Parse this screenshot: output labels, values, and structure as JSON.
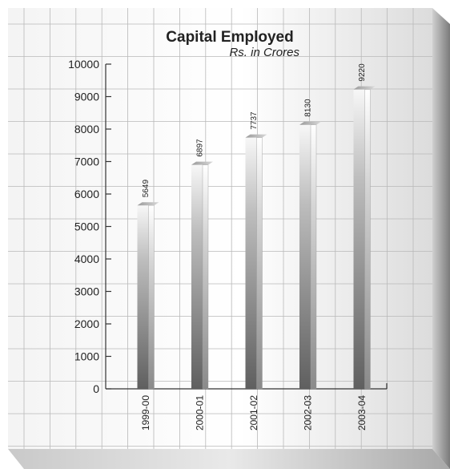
{
  "chart_data": {
    "type": "bar",
    "title": "Capital Employed",
    "subtitle": "Rs. in Crores",
    "xlabel": "",
    "ylabel": "",
    "categories": [
      "1999-00",
      "2000-01",
      "2001-02",
      "2002-03",
      "2003-04"
    ],
    "values": [
      5649,
      6897,
      7737,
      8130,
      9220
    ],
    "ylim": [
      0,
      10000
    ],
    "yticks": [
      0,
      1000,
      2000,
      3000,
      4000,
      5000,
      6000,
      7000,
      8000,
      9000,
      10000
    ],
    "grid": true,
    "legend": "none",
    "colors": {
      "bar_light": "#f2f2f2",
      "bar_dark": "#6e6e6e",
      "grid": "#b9b9b9",
      "axis": "#333333"
    }
  }
}
